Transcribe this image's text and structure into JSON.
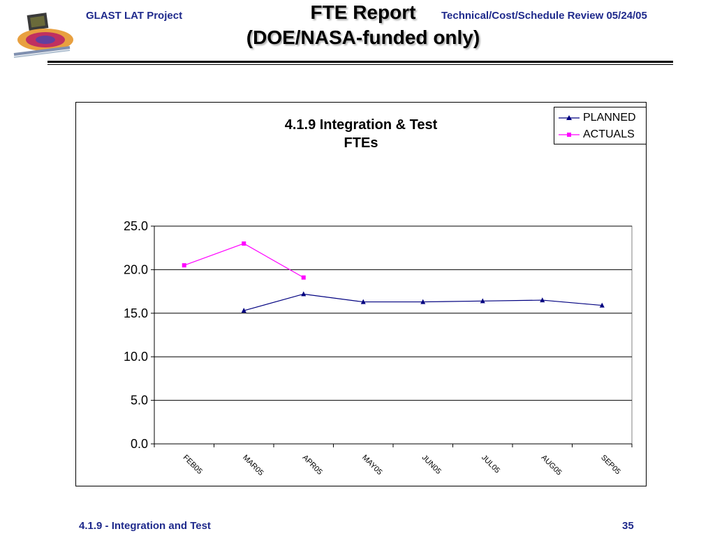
{
  "header": {
    "project": "GLAST LAT Project",
    "review": "Technical/Cost/Schedule Review 05/24/05",
    "title_line1": "FTE Report",
    "title_line2": "(DOE/NASA-funded only)"
  },
  "footer": {
    "section": "4.1.9 - Integration and Test",
    "page": "35"
  },
  "colors": {
    "header_text": "#1f2a8c",
    "planned": "#000080",
    "actuals": "#ff00ff"
  },
  "chart_data": {
    "type": "line",
    "title_line1": "4.1.9 Integration & Test",
    "title_line2": "FTEs",
    "categories": [
      "FEB05",
      "MAR05",
      "APR05",
      "MAY05",
      "JUN05",
      "JUL05",
      "AUG05",
      "SEP05"
    ],
    "series": [
      {
        "name": "PLANNED",
        "marker": "triangle",
        "values": [
          null,
          15.3,
          17.2,
          16.3,
          16.3,
          16.4,
          16.5,
          15.9
        ]
      },
      {
        "name": "ACTUALS",
        "marker": "square",
        "values": [
          20.5,
          23.0,
          19.1,
          null,
          null,
          null,
          null,
          null
        ]
      }
    ],
    "yticks": [
      "0.0",
      "5.0",
      "10.0",
      "15.0",
      "20.0",
      "25.0"
    ],
    "ylim": [
      0,
      25
    ],
    "grid": true,
    "legend": "top-right"
  }
}
